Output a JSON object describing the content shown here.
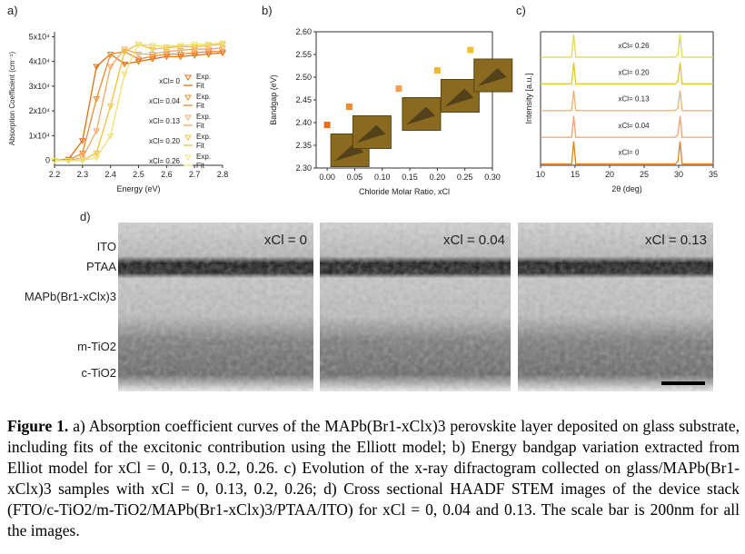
{
  "chart_data": [
    {
      "type": "line",
      "label": "a)",
      "xlabel": "Energy (eV)",
      "ylabel": "Absorption Coefficient (cm⁻¹)",
      "x": [
        2.2,
        2.25,
        2.3,
        2.35,
        2.4,
        2.45,
        2.5,
        2.55,
        2.6,
        2.65,
        2.7,
        2.75,
        2.8
      ],
      "xlim": [
        2.2,
        2.8
      ],
      "xticks": [
        2.2,
        2.3,
        2.4,
        2.5,
        2.6,
        2.7,
        2.8
      ],
      "ylim": [
        -2000,
        52000
      ],
      "yticks": [
        0,
        {
          "value": 10000,
          "label": "1x10⁴"
        },
        {
          "value": 20000,
          "label": "2x10⁴"
        },
        {
          "value": 30000,
          "label": "3x10⁴"
        },
        {
          "value": 40000,
          "label": "4x10⁴"
        },
        {
          "value": 50000,
          "label": "5x10⁴"
        }
      ],
      "markers": true,
      "legend": "right",
      "legend_entries": [
        "Exp.",
        "Fit"
      ],
      "series": [
        {
          "name": "xCl= 0",
          "color": "#e07010",
          "values": [
            0,
            500,
            8000,
            38000,
            43000,
            39000,
            40000,
            41000,
            42000,
            42000,
            42500,
            43000,
            43500
          ]
        },
        {
          "name": "xCl= 0.04",
          "color": "#f08a30",
          "values": [
            0,
            0,
            3000,
            25000,
            43000,
            44000,
            41000,
            42000,
            43000,
            43000,
            43500,
            44000,
            44000
          ]
        },
        {
          "name": "xCl= 0.13",
          "color": "#f4a860",
          "values": [
            0,
            0,
            1000,
            12000,
            38000,
            45000,
            43000,
            43000,
            44000,
            44500,
            45000,
            45000,
            45500
          ]
        },
        {
          "name": "xCl= 0.20",
          "color": "#f0c040",
          "values": [
            0,
            0,
            0,
            3000,
            22000,
            44000,
            47000,
            45000,
            45500,
            46000,
            46000,
            46500,
            47000
          ]
        },
        {
          "name": "xCl= 0.26",
          "color": "#ece070",
          "values": [
            0,
            0,
            0,
            1000,
            10000,
            35000,
            47000,
            46500,
            46000,
            46500,
            47000,
            47000,
            47500
          ]
        }
      ]
    },
    {
      "type": "scatter",
      "label": "b)",
      "xlabel": "Chloride Molar Ratio, xCl",
      "ylabel": "Bandgap (eV)",
      "x": [
        0,
        0.04,
        0.13,
        0.2,
        0.26
      ],
      "values": [
        2.395,
        2.435,
        2.475,
        2.515,
        2.56
      ],
      "colors": [
        "#e8701a",
        "#f08a30",
        "#f4a050",
        "#f0b838",
        "#f0c030"
      ],
      "xlim": [
        -0.02,
        0.3
      ],
      "xticks": [
        {
          "value": 0,
          "label": "0.00"
        },
        0.05,
        {
          "value": 0.1,
          "label": "0.10"
        },
        0.15,
        {
          "value": 0.2,
          "label": "0.20"
        },
        0.25,
        {
          "value": 0.3,
          "label": "0.30"
        }
      ],
      "ylim": [
        2.3,
        2.6
      ],
      "yticks": [
        {
          "value": 2.3,
          "label": "2.30"
        },
        2.35,
        {
          "value": 2.4,
          "label": "2.40"
        },
        2.45,
        {
          "value": 2.5,
          "label": "2.50"
        },
        2.55,
        {
          "value": 2.6,
          "label": "2.60"
        }
      ]
    },
    {
      "type": "line",
      "label": "c)",
      "xlabel": "2θ (deg)",
      "ylabel": "Intensity [a.u.]",
      "x": [
        10,
        14.5,
        14.8,
        15.1,
        15.5,
        20,
        29.5,
        29.9,
        30.2,
        30.5,
        31,
        35
      ],
      "xlim": [
        10,
        35
      ],
      "xticks": [
        10,
        15,
        20,
        25,
        30,
        35
      ],
      "ylim": [
        0,
        5
      ],
      "yticks": [],
      "markers": false,
      "legend": "inline",
      "series": [
        {
          "name": "xCl= 0",
          "color": "#e8801a",
          "values": [
            0.05,
            0.05,
            0.9,
            0.05,
            0.05,
            0.05,
            0.05,
            0.15,
            0.9,
            0.05,
            0.05,
            0.05
          ]
        },
        {
          "name": "xCl= 0.04",
          "color": "#eea070",
          "values": [
            1.05,
            1.05,
            1.85,
            1.05,
            1.05,
            1.05,
            1.05,
            1.15,
            1.85,
            1.05,
            1.05,
            1.05
          ]
        },
        {
          "name": "xCl= 0.13",
          "color": "#f2b070",
          "values": [
            2.05,
            2.05,
            2.8,
            2.05,
            2.05,
            2.05,
            2.05,
            2.15,
            2.8,
            2.05,
            2.05,
            2.05
          ]
        },
        {
          "name": "xCl= 0.20",
          "color": "#e0c830",
          "values": [
            3.05,
            3.05,
            3.85,
            3.05,
            3.05,
            3.05,
            3.05,
            3.15,
            3.85,
            3.05,
            3.05,
            3.05
          ]
        },
        {
          "name": "xCl= 0.26",
          "color": "#e0dc50",
          "values": [
            4.05,
            4.05,
            4.9,
            4.05,
            4.05,
            4.05,
            4.05,
            4.15,
            4.9,
            4.05,
            4.05,
            4.05
          ]
        }
      ]
    }
  ],
  "panel_d": {
    "label": "d)",
    "layers": [
      "ITO",
      "PTAA",
      "MAPb(Br1-xClx)3",
      "m-TiO2",
      "c-TiO2"
    ],
    "images": [
      "xCl = 0",
      "xCl = 0.04",
      "xCl = 0.13"
    ]
  },
  "caption": {
    "label": "Figure 1.",
    "text": "a) Absorption coefficient curves of the MAPb(Br1-xClx)3 perovskite layer deposited on glass substrate, including fits of the excitonic contribution using the Elliott model; b) Energy bandgap variation extracted from Elliot model for xCl = 0, 0.13, 0.2, 0.26. c) Evolution of the x-ray difractogram collected on glass/MAPb(Br1-xClx)3 samples with xCl = 0, 0.13, 0.2, 0.26; d) Cross sectional HAADF STEM images of the device stack (FTO/c-TiO2/m-TiO2/MAPb(Br1-xClx)3/PTAA/ITO) for xCl = 0, 0.04 and 0.13. The scale bar is 200nm for all the images."
  }
}
